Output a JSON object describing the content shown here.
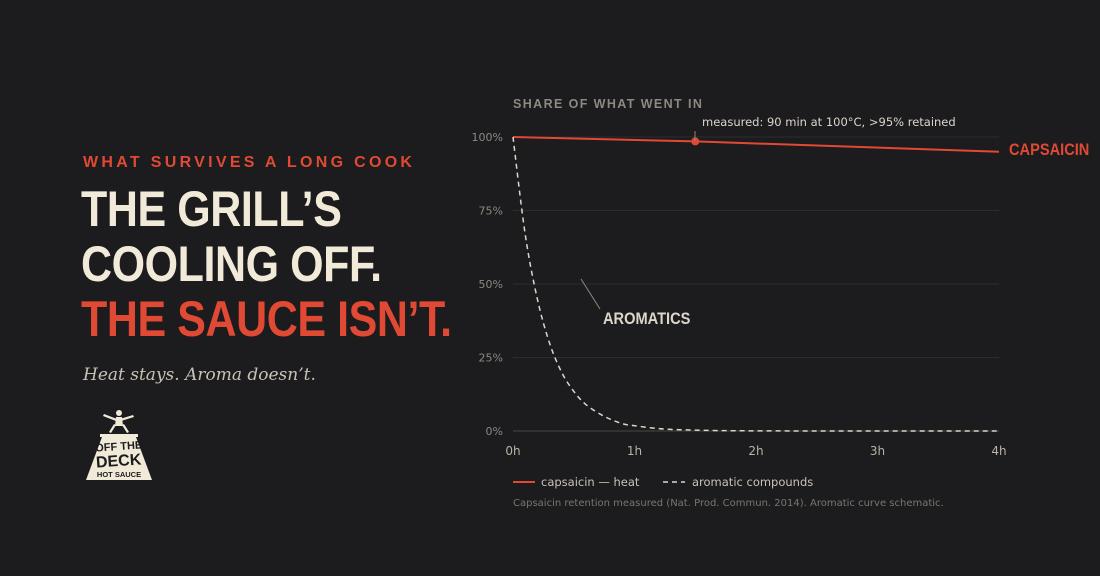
{
  "brand": {
    "eyebrow": "WHAT SURVIVES A LONG COOK",
    "headline": [
      "THE GRILL’S",
      "COOLING OFF.",
      "THE SAUCE ISN’T."
    ],
    "subline": "Heat stays. Aroma doesn’t.",
    "logo": {
      "line1": "OFF THE",
      "line2": "DECK",
      "line3": "HOT SAUCE"
    }
  },
  "colors": {
    "background": "#1c1b1d",
    "accent": "#e04a35",
    "cream": "#f1ead9",
    "muted": "#8d8982",
    "grid": "#2c2b2e"
  },
  "chart_data": {
    "type": "line",
    "title": "SHARE OF WHAT WENT IN",
    "xlim": [
      0,
      4
    ],
    "ylim": [
      0,
      100
    ],
    "x_ticks": [
      {
        "value": 0,
        "label": "0h"
      },
      {
        "value": 1,
        "label": "1h"
      },
      {
        "value": 2,
        "label": "2h"
      },
      {
        "value": 3,
        "label": "3h"
      },
      {
        "value": 4,
        "label": "4h"
      }
    ],
    "y_ticks": [
      {
        "value": 0,
        "label": "0%"
      },
      {
        "value": 25,
        "label": "25%"
      },
      {
        "value": 50,
        "label": "50%"
      },
      {
        "value": 75,
        "label": "75%"
      },
      {
        "value": 100,
        "label": "100%"
      }
    ],
    "grid": true,
    "series": [
      {
        "name": "capsaicin — heat",
        "label": "CAPSAICIN",
        "color": "#e04a35",
        "style": "solid",
        "x": [
          0,
          1.5,
          4
        ],
        "y": [
          100,
          98.5,
          95
        ]
      },
      {
        "name": "aromatic compounds",
        "label": "AROMATICS",
        "color": "#dcd6cb",
        "style": "dashed",
        "x": [
          0,
          0.1,
          0.2,
          0.3,
          0.4,
          0.5,
          0.6,
          0.75,
          0.9,
          1.0,
          1.2,
          1.4,
          1.6,
          1.8,
          2.0,
          2.5,
          3.0,
          3.5,
          4.0
        ],
        "y": [
          100,
          67,
          45,
          30,
          20,
          13.5,
          9,
          5,
          2.5,
          1.8,
          0.8,
          0.4,
          0.2,
          0.1,
          0.05,
          0,
          0,
          0,
          0
        ]
      }
    ],
    "annotations": [
      {
        "text": "measured: 90 min at 100°C, >95% retained",
        "x": 1.5,
        "y": 98.5
      }
    ],
    "legend": "bottom-left",
    "footnote": "Capsaicin retention measured (Nat. Prod. Commun. 2014). Aromatic curve schematic."
  }
}
